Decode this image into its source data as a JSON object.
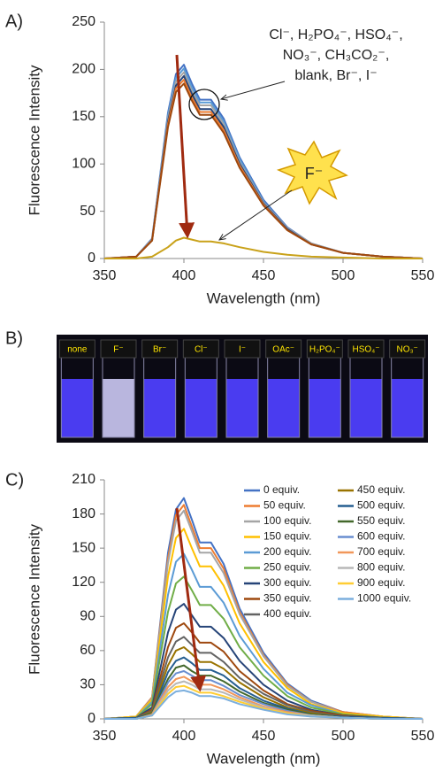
{
  "chart_data": [
    {
      "type": "line",
      "panel_label": "A)",
      "xlabel": "Wavelength (nm)",
      "ylabel": "Fluorescence Intensity",
      "x": [
        350,
        370,
        380,
        390,
        395,
        400,
        405,
        410,
        417,
        425,
        435,
        450,
        465,
        480,
        500,
        525,
        550
      ],
      "xlim": [
        350,
        550
      ],
      "xticks": [
        350,
        400,
        450,
        500,
        550
      ],
      "ylim": [
        0,
        250
      ],
      "yticks": [
        0,
        50,
        100,
        150,
        200,
        250
      ],
      "grid": false,
      "legend": false,
      "series": [
        {
          "color": "#4472c4",
          "values": [
            0,
            2,
            21,
            154,
            195,
            205,
            185,
            168,
            168,
            148,
            107,
            62,
            33,
            16,
            6,
            2,
            0
          ]
        },
        {
          "color": "#5b9bd5",
          "values": [
            0,
            2,
            20,
            151,
            191,
            201,
            181,
            165,
            165,
            145,
            105,
            60,
            32,
            16,
            6,
            2,
            0
          ]
        },
        {
          "color": "#a5a5a5",
          "values": [
            0,
            2,
            20,
            148,
            187,
            197,
            177,
            162,
            162,
            142,
            102,
            59,
            32,
            16,
            6,
            2,
            0
          ]
        },
        {
          "color": "#264478",
          "values": [
            0,
            2,
            19,
            145,
            183,
            193,
            174,
            158,
            158,
            139,
            100,
            58,
            31,
            15,
            6,
            2,
            0
          ]
        },
        {
          "color": "#ed7d31",
          "values": [
            0,
            2,
            19,
            142,
            180,
            189,
            170,
            155,
            155,
            136,
            98,
            57,
            30,
            15,
            6,
            2,
            0
          ]
        },
        {
          "color": "#9e480e",
          "values": [
            0,
            2,
            19,
            139,
            176,
            185,
            167,
            152,
            152,
            133,
            96,
            56,
            30,
            15,
            6,
            2,
            0
          ]
        },
        {
          "color": "#c9a21a",
          "values": [
            0,
            0,
            2,
            12,
            19,
            22,
            20,
            18,
            18,
            16,
            12,
            7,
            4,
            2,
            1,
            0,
            0
          ]
        }
      ],
      "annotations": [
        "Cl⁻, H₂PO₄⁻, HSO₄⁻,",
        "NO₃⁻, CH₃CO₂⁻,",
        "blank, Br⁻, I⁻",
        "F⁻"
      ]
    },
    {
      "type": "line",
      "panel_label": "C)",
      "xlabel": "Wavelength (nm)",
      "ylabel": "Fluorescence Intensity",
      "x": [
        350,
        370,
        380,
        390,
        395,
        400,
        405,
        410,
        417,
        425,
        435,
        450,
        465,
        480,
        500,
        525,
        550
      ],
      "xlim": [
        350,
        550
      ],
      "xticks": [
        350,
        400,
        450,
        500,
        550
      ],
      "ylim": [
        0,
        210
      ],
      "yticks": [
        0,
        30,
        60,
        90,
        120,
        150,
        180,
        210
      ],
      "grid": false,
      "legend": true,
      "series": [
        {
          "name": "0 equiv.",
          "color": "#4472c4",
          "values": [
            0,
            2,
            19,
            146,
            184,
            194,
            175,
            155,
            155,
            136,
            97,
            58,
            31,
            16,
            6,
            2,
            0
          ]
        },
        {
          "name": "50 equiv.",
          "color": "#ed7d31",
          "values": [
            0,
            2,
            19,
            141,
            179,
            188,
            169,
            150,
            150,
            132,
            94,
            56,
            30,
            15,
            6,
            2,
            0
          ]
        },
        {
          "name": "100 equiv.",
          "color": "#a5a5a5",
          "values": [
            0,
            2,
            18,
            137,
            174,
            183,
            165,
            146,
            146,
            128,
            92,
            55,
            29,
            15,
            5,
            2,
            0
          ]
        },
        {
          "name": "150 equiv.",
          "color": "#ffc000",
          "values": [
            0,
            2,
            17,
            125,
            159,
            167,
            150,
            134,
            134,
            117,
            84,
            50,
            27,
            13,
            5,
            2,
            0
          ]
        },
        {
          "name": "200 equiv.",
          "color": "#5b9bd5",
          "values": [
            0,
            1,
            15,
            109,
            138,
            145,
            131,
            116,
            116,
            102,
            73,
            44,
            23,
            12,
            4,
            1,
            0
          ]
        },
        {
          "name": "250 equiv.",
          "color": "#70ad47",
          "values": [
            0,
            1,
            13,
            94,
            119,
            125,
            113,
            100,
            100,
            88,
            63,
            38,
            20,
            10,
            4,
            1,
            0
          ]
        },
        {
          "name": "300 equiv.",
          "color": "#264478",
          "values": [
            0,
            1,
            10,
            76,
            96,
            101,
            91,
            81,
            81,
            71,
            51,
            30,
            16,
            8,
            3,
            1,
            0
          ]
        },
        {
          "name": "350 equiv.",
          "color": "#9e480e",
          "values": [
            0,
            1,
            8,
            63,
            80,
            84,
            76,
            67,
            67,
            59,
            42,
            25,
            13,
            7,
            3,
            1,
            0
          ]
        },
        {
          "name": "400 equiv.",
          "color": "#636363",
          "values": [
            0,
            1,
            7,
            54,
            68,
            72,
            65,
            58,
            58,
            50,
            36,
            22,
            12,
            6,
            2,
            1,
            0
          ]
        },
        {
          "name": "450 equiv.",
          "color": "#997300",
          "values": [
            0,
            1,
            6,
            47,
            60,
            63,
            57,
            50,
            50,
            44,
            32,
            19,
            10,
            5,
            2,
            1,
            0
          ]
        },
        {
          "name": "500 equiv.",
          "color": "#255e91",
          "values": [
            0,
            1,
            5,
            41,
            51,
            54,
            49,
            43,
            43,
            38,
            27,
            16,
            9,
            4,
            2,
            1,
            0
          ]
        },
        {
          "name": "550 equiv.",
          "color": "#43682b",
          "values": [
            0,
            0,
            5,
            35,
            45,
            47,
            42,
            38,
            38,
            33,
            24,
            14,
            8,
            4,
            1,
            0,
            0
          ]
        },
        {
          "name": "600 equiv.",
          "color": "#698ed0",
          "values": [
            0,
            0,
            4,
            32,
            40,
            42,
            38,
            34,
            34,
            29,
            21,
            13,
            7,
            3,
            1,
            0,
            0
          ]
        },
        {
          "name": "700 equiv.",
          "color": "#f1975a",
          "values": [
            0,
            0,
            4,
            28,
            35,
            37,
            33,
            30,
            30,
            26,
            19,
            11,
            6,
            3,
            1,
            0,
            0
          ]
        },
        {
          "name": "800 equiv.",
          "color": "#b7b7b7",
          "values": [
            0,
            0,
            3,
            25,
            31,
            33,
            30,
            26,
            26,
            23,
            17,
            10,
            5,
            3,
            1,
            0,
            0
          ]
        },
        {
          "name": "900 equiv.",
          "color": "#ffcd33",
          "values": [
            0,
            0,
            3,
            22,
            28,
            29,
            26,
            23,
            23,
            20,
            15,
            9,
            5,
            2,
            1,
            0,
            0
          ]
        },
        {
          "name": "1000 equiv.",
          "color": "#7cafdd",
          "values": [
            0,
            0,
            3,
            19,
            24,
            25,
            23,
            20,
            20,
            18,
            13,
            8,
            4,
            2,
            1,
            0,
            0
          ]
        }
      ]
    }
  ],
  "photo": {
    "panel_label": "B)",
    "tubes": [
      "none",
      "F⁻",
      "Br⁻",
      "Cl⁻",
      "I⁻",
      "OAc⁻",
      "H₂PO₄⁻",
      "HSO₄⁻",
      "NO₃⁻"
    ],
    "colors": [
      "#4a3cf0",
      "#b9b6de",
      "#4a3cf0",
      "#4a3cf0",
      "#4a3cf0",
      "#4a3cf0",
      "#4a3cf0",
      "#4a3cf0",
      "#4a3cf0"
    ]
  }
}
